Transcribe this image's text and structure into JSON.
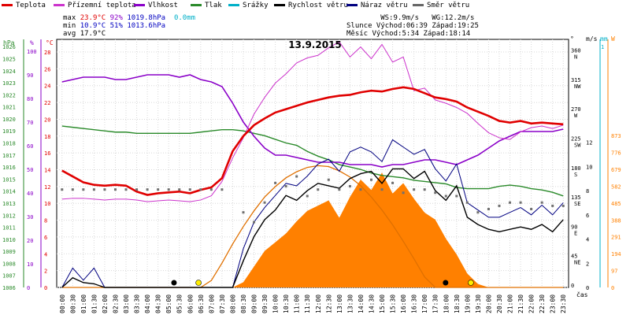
{
  "legend": [
    {
      "label": "Teplota",
      "color": "#e00000"
    },
    {
      "label": "Přízemní teplota",
      "color": "#cc33cc"
    },
    {
      "label": "Vlhkost",
      "color": "#8a00c8"
    },
    {
      "label": "Tlak",
      "color": "#2a8a2a"
    },
    {
      "label": "Srážky",
      "color": "#00b0c8"
    },
    {
      "label": "Rychlost větru",
      "color": "#000000"
    },
    {
      "label": "Náraz větru",
      "color": "#000080"
    },
    {
      "label": "Směr větru",
      "color": "#666666"
    }
  ],
  "stats": {
    "max_label": "max",
    "max_temp": "23.9°C",
    "max_hum": "92%",
    "max_press": "1019.8hPa",
    "rain": "0.0mm",
    "min_label": "min",
    "min_temp": "10.9°C",
    "min_hum": "51%",
    "min_press": "1013.6hPa",
    "avg_label": "avg",
    "avg_temp": "17.9°C",
    "ws": "WS:9.9m/s",
    "wg": "WG:12.2m/s",
    "sun": "Slunce Východ:06:39",
    "sun_set": "Západ:19:25",
    "moon": "Měsíc  Východ:5:34",
    "moon_set": "Západ:18:14"
  },
  "title": "13.9.2015",
  "chart_data": {
    "type": "line",
    "title": "13.9.2015",
    "x_times": [
      "00:00",
      "00:30",
      "01:00",
      "01:30",
      "02:00",
      "02:30",
      "03:00",
      "03:30",
      "04:00",
      "04:30",
      "05:00",
      "05:30",
      "06:00",
      "06:30",
      "07:00",
      "07:30",
      "08:00",
      "08:30",
      "09:00",
      "09:30",
      "10:00",
      "10:30",
      "11:00",
      "11:30",
      "12:00",
      "12:30",
      "13:00",
      "13:30",
      "14:00",
      "14:30",
      "15:00",
      "15:30",
      "16:00",
      "16:30",
      "17:00",
      "17:30",
      "18:00",
      "18:30",
      "19:00",
      "19:30",
      "20:00",
      "20:30",
      "21:00",
      "21:30",
      "22:00",
      "22:30",
      "23:00",
      "23:30"
    ],
    "xlabel": "čas",
    "axes": {
      "press_hpa": {
        "label": "hPa",
        "ticks": [
          1006,
          1007,
          1008,
          1009,
          1010,
          1011,
          1012,
          1013,
          1014,
          1015,
          1016,
          1017,
          1018,
          1019,
          1020,
          1021,
          1022,
          1023,
          1024,
          1025,
          1026
        ],
        "color": "#2a8a2a"
      },
      "hum_pct": {
        "label": "%",
        "ticks": [
          0,
          10,
          20,
          30,
          40,
          50,
          60,
          70,
          80,
          90,
          100
        ],
        "color": "#8a00c8"
      },
      "temp_c": {
        "label": "°C",
        "ticks": [
          0,
          2,
          4,
          6,
          8,
          10,
          12,
          14,
          16,
          18,
          20,
          22,
          24,
          26,
          28
        ],
        "color": "#e00000"
      },
      "dir_deg": {
        "label": "°",
        "ticks": [
          "0",
          "45 NE",
          "90 E",
          "135 SE",
          "180 S",
          "225 SW",
          "270 W",
          "315 NW",
          "360 N"
        ]
      },
      "wind_ms": {
        "label": "m/s",
        "ticks": [
          0,
          2,
          4,
          6,
          8,
          10,
          12
        ]
      },
      "rain_mm": {
        "label": "mm",
        "ticks": [
          "0",
          "1"
        ],
        "color": "#00b0c8"
      },
      "solar_w": {
        "label": "W",
        "ticks": [
          0,
          97,
          194,
          291,
          388,
          485,
          582,
          679,
          776,
          873
        ],
        "color": "#ff8000"
      }
    },
    "series": [
      {
        "name": "Teplota",
        "unit": "°C",
        "values": [
          13.9,
          13.2,
          12.5,
          12.2,
          12.1,
          12.2,
          12.1,
          11.4,
          11.0,
          11.2,
          11.3,
          11.4,
          11.2,
          11.6,
          11.9,
          13.0,
          16.2,
          18.0,
          19.3,
          20.1,
          20.8,
          21.2,
          21.6,
          22.0,
          22.3,
          22.6,
          22.8,
          22.9,
          23.2,
          23.4,
          23.3,
          23.6,
          23.8,
          23.6,
          23.1,
          22.6,
          22.4,
          22.1,
          21.4,
          20.9,
          20.4,
          19.8,
          19.6,
          19.8,
          19.5,
          19.6,
          19.5,
          19.4
        ]
      },
      {
        "name": "Přízemní teplota",
        "unit": "°C",
        "values": [
          10.5,
          10.6,
          10.6,
          10.5,
          10.4,
          10.5,
          10.5,
          10.4,
          10.2,
          10.3,
          10.4,
          10.3,
          10.2,
          10.4,
          10.9,
          12.6,
          15.4,
          17.8,
          20.6,
          22.6,
          24.3,
          25.4,
          26.7,
          27.3,
          27.6,
          28.5,
          29.2,
          27.4,
          28.6,
          27.2,
          28.9,
          26.8,
          27.4,
          23.4,
          23.7,
          22.3,
          21.9,
          21.4,
          20.7,
          19.5,
          18.4,
          17.8,
          17.6,
          18.5,
          19.0,
          19.2,
          18.9,
          19.3
        ]
      },
      {
        "name": "Vlhkost",
        "unit": "%",
        "values": [
          87,
          88,
          89,
          89,
          89,
          88,
          88,
          89,
          90,
          90,
          90,
          89,
          90,
          88,
          87,
          85,
          78,
          70,
          64,
          59,
          56,
          56,
          55,
          54,
          53,
          53,
          53,
          52,
          52,
          52,
          51,
          52,
          52,
          53,
          54,
          54,
          53,
          52,
          54,
          56,
          59,
          62,
          64,
          66,
          66,
          66,
          66,
          67
        ]
      },
      {
        "name": "Tlak",
        "unit": "hPa",
        "values": [
          1019.4,
          1019.3,
          1019.2,
          1019.1,
          1019.0,
          1018.9,
          1018.9,
          1018.8,
          1018.8,
          1018.8,
          1018.8,
          1018.8,
          1018.8,
          1018.9,
          1019.0,
          1019.1,
          1019.1,
          1019.0,
          1018.8,
          1018.6,
          1018.3,
          1018.0,
          1017.8,
          1017.3,
          1016.9,
          1016.6,
          1016.2,
          1016.0,
          1015.8,
          1015.5,
          1015.3,
          1015.2,
          1015.1,
          1014.9,
          1014.8,
          1014.7,
          1014.6,
          1014.3,
          1014.2,
          1014.2,
          1014.2,
          1014.4,
          1014.5,
          1014.4,
          1014.2,
          1014.1,
          1013.9,
          1013.6
        ]
      },
      {
        "name": "Rychlost větru",
        "unit": "m/s",
        "values": [
          0,
          0.8,
          0.4,
          0.3,
          0,
          0,
          0,
          0,
          0,
          0,
          0,
          0,
          0,
          0,
          0,
          0,
          0,
          2.2,
          4.2,
          5.6,
          6.4,
          7.6,
          7.2,
          8.0,
          8.6,
          8.4,
          8.2,
          9.0,
          9.4,
          9.6,
          8.6,
          9.8,
          9.8,
          9.0,
          9.6,
          8.0,
          7.2,
          8.4,
          5.8,
          5.2,
          4.8,
          4.6,
          4.8,
          5.0,
          4.8,
          5.2,
          4.6,
          5.6
        ]
      },
      {
        "name": "Náraz větru",
        "unit": "m/s",
        "values": [
          0,
          1.6,
          0.6,
          1.6,
          0,
          0,
          0,
          0,
          0,
          0,
          0,
          0,
          0,
          0,
          0,
          0,
          0,
          3.2,
          5.4,
          6.6,
          7.6,
          8.6,
          8.4,
          9.2,
          10.2,
          10.6,
          9.6,
          11.2,
          11.6,
          11.2,
          10.4,
          12.2,
          11.6,
          11.0,
          11.4,
          9.8,
          8.8,
          10.2,
          7.0,
          6.4,
          5.8,
          5.8,
          6.2,
          6.6,
          6.0,
          6.8,
          6.0,
          7.0
        ]
      },
      {
        "name": "Směr větru",
        "unit": "°",
        "values": [
          150,
          150,
          150,
          150,
          150,
          150,
          150,
          150,
          150,
          150,
          150,
          150,
          150,
          150,
          150,
          150,
          null,
          115,
          100,
          130,
          160,
          155,
          170,
          140,
          150,
          165,
          150,
          155,
          150,
          165,
          150,
          160,
          145,
          150,
          150,
          145,
          140,
          140,
          130,
          115,
          120,
          125,
          130,
          130,
          120,
          130,
          125,
          125
        ]
      },
      {
        "name": "Sluneční záření",
        "unit": "W",
        "values": [
          0,
          0,
          0,
          0,
          0,
          0,
          0,
          0,
          0,
          0,
          0,
          0,
          0,
          0,
          0,
          0,
          0,
          30,
          120,
          210,
          260,
          310,
          380,
          440,
          470,
          500,
          400,
          520,
          620,
          560,
          660,
          540,
          600,
          510,
          430,
          390,
          280,
          190,
          80,
          20,
          0,
          0,
          0,
          0,
          0,
          0,
          0,
          0
        ]
      },
      {
        "name": "Teoretické záření",
        "unit": "W",
        "values": [
          0,
          0,
          0,
          0,
          0,
          0,
          0,
          0,
          0,
          0,
          0,
          0,
          0,
          0,
          40,
          140,
          250,
          350,
          440,
          520,
          580,
          630,
          665,
          690,
          700,
          695,
          670,
          635,
          585,
          520,
          445,
          360,
          265,
          165,
          60,
          0,
          0,
          0,
          0,
          0,
          0,
          0,
          0,
          0,
          0,
          0,
          0,
          0
        ]
      }
    ],
    "markers": [
      {
        "time": "05:30",
        "kind": "moonrise"
      },
      {
        "time": "06:39",
        "kind": "sunrise"
      },
      {
        "time": "18:14",
        "kind": "moonset"
      },
      {
        "time": "19:25",
        "kind": "sunset"
      }
    ]
  }
}
